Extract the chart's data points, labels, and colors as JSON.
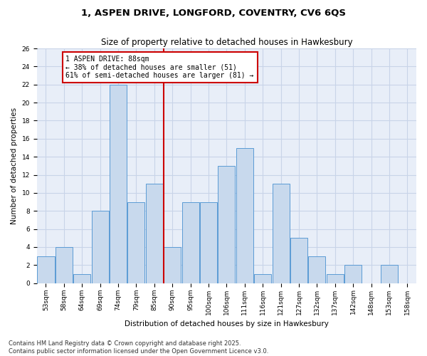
{
  "title": "1, ASPEN DRIVE, LONGFORD, COVENTRY, CV6 6QS",
  "subtitle": "Size of property relative to detached houses in Hawkesbury",
  "xlabel": "Distribution of detached houses by size in Hawkesbury",
  "ylabel": "Number of detached properties",
  "categories": [
    "53sqm",
    "58sqm",
    "64sqm",
    "69sqm",
    "74sqm",
    "79sqm",
    "85sqm",
    "90sqm",
    "95sqm",
    "100sqm",
    "106sqm",
    "111sqm",
    "116sqm",
    "121sqm",
    "127sqm",
    "132sqm",
    "137sqm",
    "142sqm",
    "148sqm",
    "153sqm",
    "158sqm"
  ],
  "values": [
    3,
    4,
    1,
    8,
    22,
    9,
    11,
    4,
    9,
    9,
    13,
    15,
    1,
    11,
    5,
    3,
    1,
    2,
    0,
    2,
    0
  ],
  "bar_color": "#c8d9ed",
  "bar_edge_color": "#5b9bd5",
  "grid_color": "#c8d4e8",
  "background_color": "#e8eef8",
  "annotation_text": "1 ASPEN DRIVE: 88sqm\n← 38% of detached houses are smaller (51)\n61% of semi-detached houses are larger (81) →",
  "vline_index": 6.5,
  "vline_color": "#cc0000",
  "annotation_box_color": "#cc0000",
  "ylim": [
    0,
    26
  ],
  "yticks": [
    0,
    2,
    4,
    6,
    8,
    10,
    12,
    14,
    16,
    18,
    20,
    22,
    24,
    26
  ],
  "footer": "Contains HM Land Registry data © Crown copyright and database right 2025.\nContains public sector information licensed under the Open Government Licence v3.0.",
  "title_fontsize": 9.5,
  "subtitle_fontsize": 8.5,
  "axis_label_fontsize": 7.5,
  "tick_fontsize": 6.5,
  "annotation_fontsize": 7.0,
  "footer_fontsize": 6.0
}
